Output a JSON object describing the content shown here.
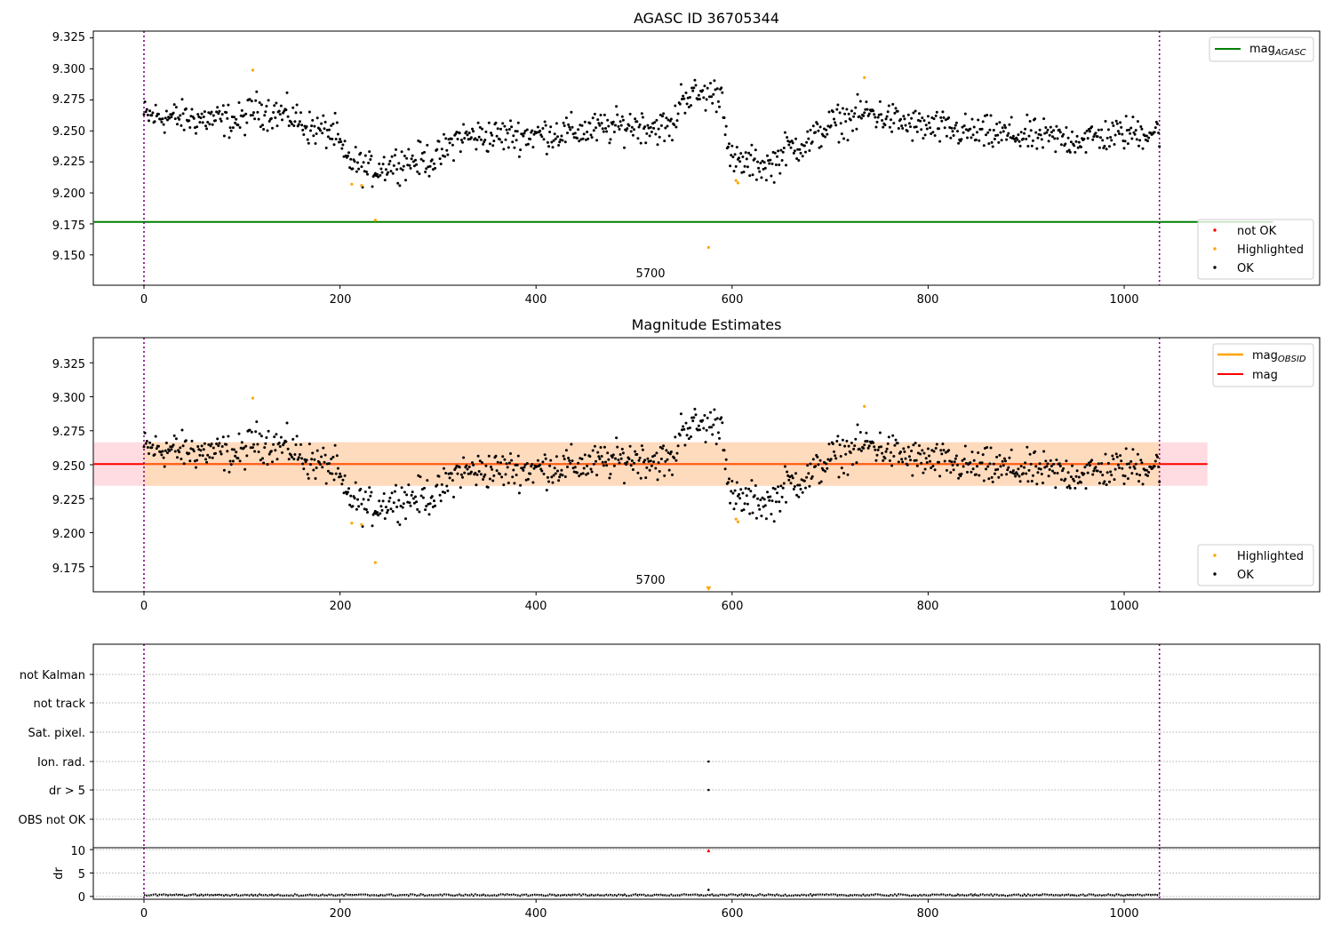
{
  "chart_data": [
    {
      "type": "scatter",
      "title": "AGASC ID 36705344",
      "xlim": [
        -51,
        1152
      ],
      "ylim": [
        9.1255,
        9.3305
      ],
      "xticks": [
        "0",
        "200",
        "400",
        "600",
        "800",
        "1000"
      ],
      "yticks": [
        "9.150",
        "9.175",
        "9.200",
        "9.225",
        "9.250",
        "9.275",
        "9.300",
        "9.325"
      ],
      "obsid_label": "5700",
      "obs_bounds": [
        0,
        1036
      ],
      "reference_lines": [
        {
          "name": "mag_AGASC",
          "value": 9.1766,
          "color": "#008000",
          "x_range": [
            -51,
            1152
          ]
        }
      ],
      "legends": [
        {
          "placement": "top-right",
          "entries": [
            {
              "label": "mag",
              "sub": "AGASC",
              "color": "#008000",
              "kind": "line"
            }
          ]
        },
        {
          "placement": "lower-right",
          "entries": [
            {
              "label": "not OK",
              "color": "#ff0000",
              "kind": "dot"
            },
            {
              "label": "Highlighted",
              "color": "#ffa500",
              "kind": "dot"
            },
            {
              "label": "OK",
              "color": "#000000",
              "kind": "dot"
            }
          ]
        }
      ],
      "series": [
        {
          "name": "OK",
          "color": "#000000",
          "points": "generated"
        },
        {
          "name": "Highlighted",
          "color": "#ffa500",
          "points": [
            [
              111,
              9.299
            ],
            [
              212,
              9.207
            ],
            [
              222,
              9.206
            ],
            [
              236,
              9.178
            ],
            [
              576,
              9.156
            ],
            [
              604,
              9.21
            ],
            [
              606,
              9.208
            ],
            [
              735,
              9.293
            ]
          ]
        }
      ],
      "trend_segments": [
        [
          0,
          9.262
        ],
        [
          50,
          9.26
        ],
        [
          100,
          9.258
        ],
        [
          112,
          9.268
        ],
        [
          150,
          9.262
        ],
        [
          170,
          9.252
        ],
        [
          195,
          9.248
        ],
        [
          205,
          9.228
        ],
        [
          230,
          9.218
        ],
        [
          260,
          9.225
        ],
        [
          300,
          9.228
        ],
        [
          320,
          9.245
        ],
        [
          400,
          9.247
        ],
        [
          450,
          9.25
        ],
        [
          500,
          9.255
        ],
        [
          540,
          9.252
        ],
        [
          548,
          9.278
        ],
        [
          590,
          9.28
        ],
        [
          598,
          9.225
        ],
        [
          640,
          9.222
        ],
        [
          655,
          9.235
        ],
        [
          680,
          9.242
        ],
        [
          700,
          9.255
        ],
        [
          740,
          9.265
        ],
        [
          780,
          9.255
        ],
        [
          850,
          9.248
        ],
        [
          900,
          9.246
        ],
        [
          950,
          9.243
        ],
        [
          1000,
          9.248
        ],
        [
          1036,
          9.25
        ]
      ]
    },
    {
      "type": "scatter",
      "title": "Magnitude Estimates",
      "xlim": [
        -51,
        1152
      ],
      "ylim": [
        9.1565,
        9.3435
      ],
      "xticks": [
        "0",
        "200",
        "400",
        "600",
        "800",
        "1000"
      ],
      "yticks": [
        "9.175",
        "9.200",
        "9.225",
        "9.250",
        "9.275",
        "9.300",
        "9.325"
      ],
      "obsid_label": "5700",
      "obs_bounds": [
        0,
        1036
      ],
      "reference_lines": [
        {
          "name": "mag",
          "value": 9.2505,
          "color": "#ff0000",
          "x_range": [
            -51,
            1085
          ]
        },
        {
          "name": "mag_OBSID",
          "value": 9.2505,
          "color": "#ffa500",
          "x_range": [
            0,
            1036
          ]
        }
      ],
      "bands": [
        {
          "name": "mag band",
          "low": 9.2345,
          "high": 9.2665,
          "color": "#ffc0cb",
          "x_range": [
            -51,
            1085
          ]
        },
        {
          "name": "mag_OBSID band",
          "low": 9.2345,
          "high": 9.2665,
          "color": "#ffdab9",
          "x_range": [
            0,
            1036
          ]
        }
      ],
      "legends": [
        {
          "placement": "top-right",
          "entries": [
            {
              "label": "mag",
              "sub": "OBSID",
              "color": "#ffa500",
              "kind": "line"
            },
            {
              "label": "mag",
              "sub": "",
              "color": "#ff0000",
              "kind": "line"
            }
          ]
        },
        {
          "placement": "lower-right",
          "entries": [
            {
              "label": "Highlighted",
              "color": "#ffa500",
              "kind": "dot"
            },
            {
              "label": "OK",
              "color": "#000000",
              "kind": "dot"
            }
          ]
        }
      ],
      "series": [
        {
          "name": "OK",
          "color": "#000000",
          "points": "same as first panel"
        },
        {
          "name": "Highlighted",
          "color": "#ffa500",
          "points": [
            [
              111,
              9.299
            ],
            [
              212,
              9.207
            ],
            [
              222,
              9.206
            ],
            [
              236,
              9.178
            ],
            [
              604,
              9.21
            ],
            [
              606,
              9.208
            ],
            [
              735,
              9.293
            ]
          ]
        }
      ],
      "off_scale_markers": [
        {
          "x": 576,
          "direction": "down",
          "color": "#ffa500"
        }
      ]
    },
    {
      "type": "scatter",
      "title": "",
      "xlim": [
        -51,
        1152
      ],
      "xticks": [
        "0",
        "200",
        "400",
        "600",
        "800",
        "1000"
      ],
      "flag_rows": [
        "not Kalman",
        "not track",
        "Sat. pixel.",
        "Ion. rad.",
        "dr > 5",
        "OBS not OK"
      ],
      "flag_points": [
        {
          "row": "Ion. rad.",
          "x": 576
        },
        {
          "row": "dr > 5",
          "x": 576
        }
      ],
      "obs_bounds": [
        0,
        1036
      ]
    },
    {
      "type": "line",
      "title": "",
      "ylabel": "dr",
      "xlim": [
        -51,
        1152
      ],
      "ylim": [
        -0.6,
        10.4
      ],
      "xticks": [
        "0",
        "200",
        "400",
        "600",
        "800",
        "1000"
      ],
      "yticks": [
        "0",
        "5",
        "10"
      ],
      "baseline": 0.3,
      "outliers": [
        {
          "x": 576,
          "y": 9.8,
          "color": "#ff0000"
        },
        {
          "x": 576,
          "y": 1.4,
          "color": "#000000"
        }
      ],
      "obs_bounds": [
        0,
        1036
      ]
    }
  ]
}
